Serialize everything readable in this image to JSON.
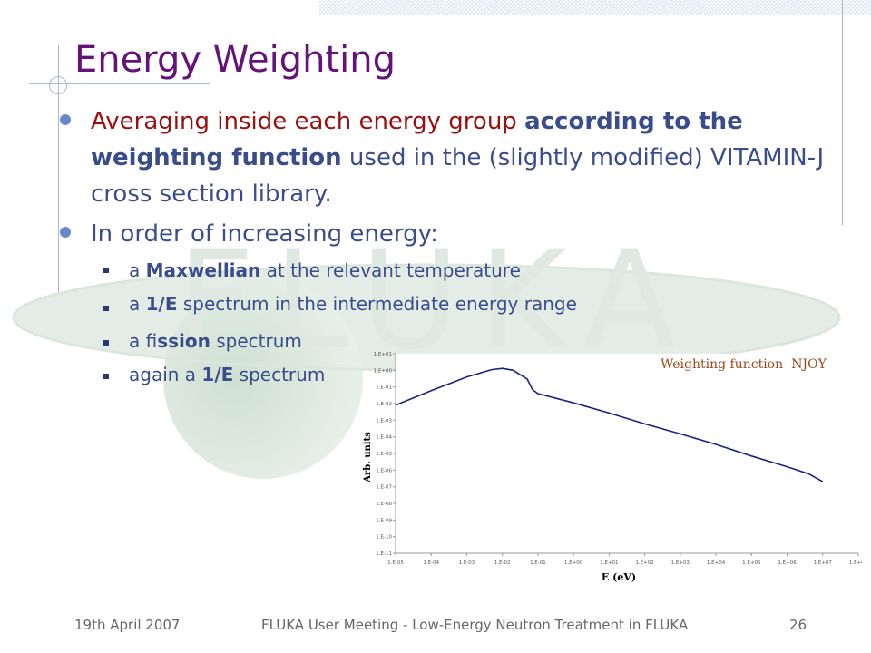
{
  "slide": {
    "title": "Energy Weighting",
    "bullets": [
      {
        "line_parts": [
          "Averaging inside each energy group",
          "according to the weighting function",
          "used in the (slightly modified) VITAMIN-J cross section library."
        ]
      },
      {
        "text": "In order of increasing energy:"
      }
    ],
    "sub_bullets": [
      {
        "pre": "a ",
        "bold": "Maxwellian",
        "post": " at the relevant temperature"
      },
      {
        "pre": "a ",
        "bold": "1/E",
        "post": " spectrum in the intermediate energy range"
      },
      {
        "pre": "a fi",
        "bold": "ssion",
        "post": " spectrum"
      },
      {
        "pre": "again a ",
        "bold": "1/E",
        "post": " spectrum"
      }
    ],
    "logo_text": "FLUKA"
  },
  "footer": {
    "date": "19th April 2007",
    "title": "FLUKA User Meeting - Low-Energy Neutron Treatment in FLUKA",
    "page": "26"
  },
  "chart_data": {
    "type": "line",
    "title": "Weighting function- NJOY",
    "xlabel": "E (eV)",
    "ylabel": "Arb. units",
    "x_scale": "log",
    "y_scale": "log",
    "x_ticks": [
      "1.E-05",
      "1.E-04",
      "1.E-03",
      "1.E-02",
      "1.E-01",
      "1.E+00",
      "1.E+01",
      "1.E+02",
      "1.E+03",
      "1.E+04",
      "1.E+05",
      "1.E+06",
      "1.E+07",
      "1.E+08"
    ],
    "y_ticks": [
      "1.E+01",
      "1.E+00",
      "1.E-01",
      "1.E-02",
      "1.E-03",
      "1.E-04",
      "1.E-05",
      "1.E-06",
      "1.E-07",
      "1.E-08",
      "1.E-09",
      "1.E-10",
      "1.E-11"
    ],
    "xlim": [
      1e-05,
      100000000.0
    ],
    "ylim": [
      1e-11,
      10.0
    ],
    "series": [
      {
        "color": "#1a237e",
        "x": [
          1e-05,
          0.0001,
          0.001,
          0.005,
          0.01,
          0.02,
          0.05,
          0.07,
          0.1,
          1,
          10,
          100,
          1000.0,
          10000.0,
          100000.0,
          1000000.0,
          4000000.0,
          10000000.0
        ],
        "y": [
          0.008,
          0.06,
          0.4,
          1.1,
          1.3,
          1.0,
          0.3,
          0.07,
          0.04,
          0.011,
          0.0027,
          0.0006,
          0.00015,
          3.5e-05,
          7e-06,
          1.6e-06,
          6e-07,
          2e-07
        ]
      }
    ]
  }
}
